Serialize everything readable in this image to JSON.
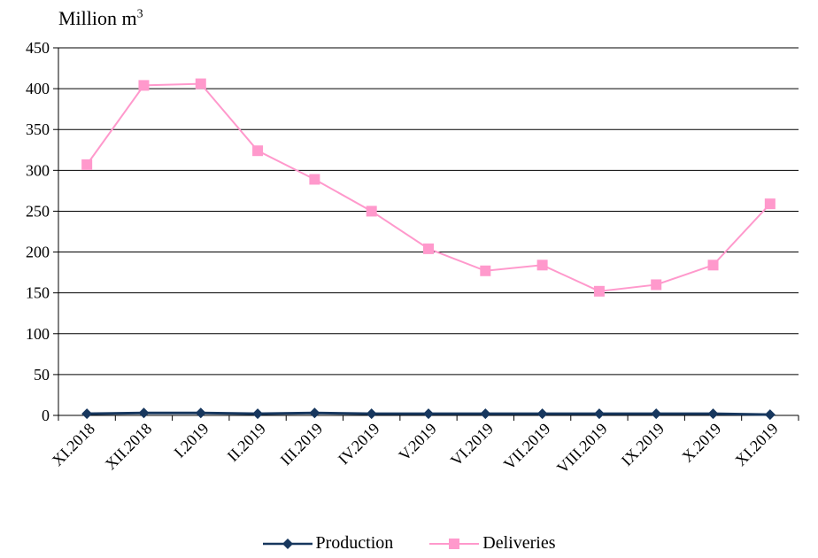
{
  "chart_data": {
    "type": "line",
    "ylabel": "Million m",
    "ylabel_superscript": "3",
    "ylim": [
      0,
      450
    ],
    "yticks": [
      0,
      50,
      100,
      150,
      200,
      250,
      300,
      350,
      400,
      450
    ],
    "grid": true,
    "legend_position": "bottom",
    "categories": [
      "XI.2018",
      "XII.2018",
      "I.2019",
      "II.2019",
      "III.2019",
      "IV.2019",
      "V.2019",
      "VI.2019",
      "VII.2019",
      "VIII.2019",
      "IX.2019",
      "X.2019",
      "XI.2019"
    ],
    "series": [
      {
        "name": "Production",
        "color": "#17375E",
        "marker": "diamond",
        "values": [
          2,
          3,
          3,
          2,
          3,
          2,
          2,
          2,
          2,
          2,
          2,
          2,
          1
        ]
      },
      {
        "name": "Deliveries",
        "color": "#FF99CC",
        "marker": "square",
        "values": [
          307,
          404,
          406,
          324,
          289,
          250,
          204,
          177,
          184,
          152,
          160,
          184,
          259
        ]
      }
    ]
  }
}
